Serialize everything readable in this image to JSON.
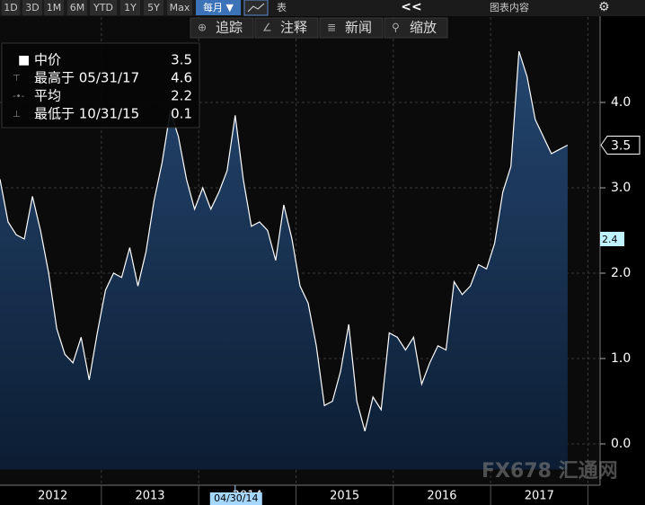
{
  "toolbar": {
    "ranges": [
      "1D",
      "3D",
      "1M",
      "6M",
      "YTD",
      "1Y",
      "5Y",
      "Max"
    ],
    "period": "每月 ▼",
    "table": "表",
    "back": "<<",
    "content": "图表内容"
  },
  "tools": [
    "追踪",
    "注释",
    "新闻",
    "缩放"
  ],
  "watermark": "FX678 汇通网",
  "chart_data": {
    "type": "area",
    "legend": [
      {
        "name": "中价",
        "value": 3.5
      },
      {
        "name": "最高于 05/31/17",
        "value": 4.6
      },
      {
        "name": "平均",
        "value": 2.2
      },
      {
        "name": "最低于 10/31/15",
        "value": 0.1
      }
    ],
    "values": [
      3.1,
      2.6,
      2.45,
      2.4,
      2.9,
      2.5,
      2.0,
      1.35,
      1.05,
      0.95,
      1.25,
      0.75,
      1.3,
      1.8,
      2.0,
      1.95,
      2.3,
      1.85,
      2.25,
      2.85,
      3.3,
      3.9,
      3.6,
      3.1,
      2.75,
      3.0,
      2.75,
      2.95,
      3.2,
      3.85,
      3.1,
      2.55,
      2.6,
      2.5,
      2.15,
      2.8,
      2.4,
      1.85,
      1.65,
      1.15,
      0.45,
      0.5,
      0.85,
      1.4,
      0.5,
      0.15,
      0.55,
      0.4,
      1.3,
      1.25,
      1.1,
      1.25,
      0.7,
      0.95,
      1.15,
      1.1,
      1.9,
      1.75,
      1.85,
      2.1,
      2.05,
      2.35,
      2.95,
      3.25,
      4.6,
      4.3,
      3.8,
      3.6,
      3.4,
      3.45,
      3.5
    ],
    "color": "#ffffff",
    "xlim": [
      0,
      74
    ],
    "xticks": [
      {
        "value": 6.5,
        "label": "2012"
      },
      {
        "value": 18.5,
        "label": "2013"
      },
      {
        "value": 30.5,
        "label": "2014"
      },
      {
        "value": 42.5,
        "label": "2015"
      },
      {
        "value": 54.5,
        "label": "2016"
      },
      {
        "value": 66.5,
        "label": "2017"
      }
    ],
    "xgrid": [
      12.5,
      24.5,
      36.5,
      48.5,
      60.5,
      72.5
    ],
    "cursor": {
      "value": 29,
      "label": "04/30/14"
    },
    "ylim": [
      -0.3,
      5.0
    ],
    "yticks": [
      {
        "value": 0,
        "label": "0.0"
      },
      {
        "value": 1,
        "label": "1.0"
      },
      {
        "value": 2,
        "label": "2.0"
      },
      {
        "value": 3,
        "label": "3.0"
      },
      {
        "value": 4,
        "label": "4.0"
      }
    ],
    "markers": [
      {
        "value": 3.5,
        "color": "#ffffff"
      },
      {
        "value": 2.4,
        "color": "#bff3ff"
      }
    ],
    "grid": true
  }
}
